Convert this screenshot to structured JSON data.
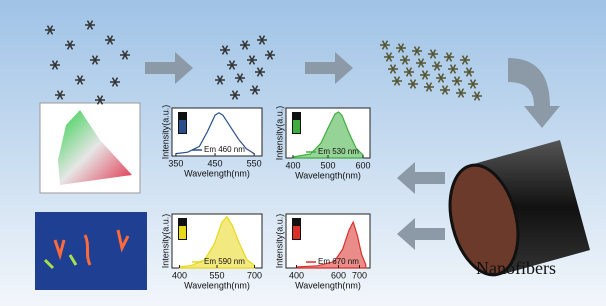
{
  "chart_data": [
    {
      "type": "area",
      "xlabel": "Wavelength(nm)",
      "ylabel": "Intensity(a.u.)",
      "x": [
        350,
        380,
        410,
        430,
        450,
        460,
        470,
        490,
        510,
        530,
        550
      ],
      "series": [
        {
          "name": "Em 460 nm",
          "color": "#2a4f8a",
          "values": [
            0.05,
            0.08,
            0.2,
            0.5,
            0.85,
            0.9,
            0.85,
            0.6,
            0.35,
            0.15,
            0.05
          ]
        }
      ],
      "xlim": [
        340,
        570
      ],
      "xticks": [
        350,
        450,
        550
      ],
      "ylim": [
        0,
        1
      ]
    },
    {
      "type": "area",
      "xlabel": "Wavelength(nm)",
      "ylabel": "Intensity(a.u.)",
      "x": [
        400,
        450,
        480,
        500,
        520,
        530,
        540,
        560,
        580,
        600
      ],
      "series": [
        {
          "name": "Em 530 nm",
          "color": "#3fae3f",
          "values": [
            0.02,
            0.08,
            0.3,
            0.6,
            0.88,
            0.92,
            0.85,
            0.5,
            0.2,
            0.06
          ]
        }
      ],
      "xlim": [
        380,
        620
      ],
      "xticks": [
        400,
        500,
        600
      ],
      "ylim": [
        0,
        1
      ]
    },
    {
      "type": "area",
      "xlabel": "Wavelength(nm)",
      "ylabel": "Intensity(a.u.)",
      "x": [
        400,
        450,
        500,
        540,
        570,
        590,
        610,
        640,
        670,
        700
      ],
      "series": [
        {
          "name": "Em 590 nm",
          "color": "#e8d81a",
          "values": [
            0.02,
            0.05,
            0.15,
            0.45,
            0.85,
            0.95,
            0.8,
            0.45,
            0.15,
            0.05
          ]
        }
      ],
      "xlim": [
        370,
        730
      ],
      "xticks": [
        400,
        550,
        700
      ],
      "ylim": [
        0,
        1
      ]
    },
    {
      "type": "area",
      "xlabel": "Wavelength(nm)",
      "ylabel": "Intensity(a.u.)",
      "x": [
        400,
        500,
        580,
        620,
        650,
        670,
        690,
        710,
        730
      ],
      "series": [
        {
          "name": "Em 670 nm",
          "color": "#d9302a",
          "values": [
            0.02,
            0.04,
            0.12,
            0.35,
            0.7,
            0.85,
            0.6,
            0.25,
            0.06
          ]
        }
      ],
      "xlim": [
        350,
        750
      ],
      "xticks": [
        400,
        600,
        700
      ],
      "ylim": [
        0,
        1
      ]
    }
  ],
  "labels": {
    "product": "Nanofibers"
  }
}
